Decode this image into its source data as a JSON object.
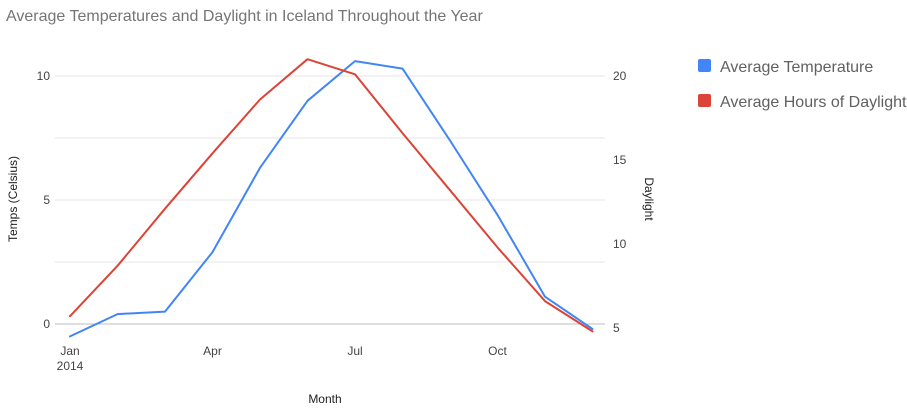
{
  "chart_data": {
    "type": "line",
    "title": "Average Temperatures and Daylight in Iceland Throughout the Year",
    "xlabel": "Month",
    "ylabel_left": "Temps (Celsius)",
    "ylabel_right": "Daylight",
    "x": [
      "2014-01",
      "2014-02",
      "2014-03",
      "2014-04",
      "2014-05",
      "2014-06",
      "2014-07",
      "2014-08",
      "2014-09",
      "2014-10",
      "2014-11",
      "2014-12"
    ],
    "x_ticks": [
      {
        "x": "2014-01",
        "label": "Jan",
        "sublabel": "2014"
      },
      {
        "x": "2014-04",
        "label": "Apr",
        "sublabel": ""
      },
      {
        "x": "2014-07",
        "label": "Jul",
        "sublabel": ""
      },
      {
        "x": "2014-10",
        "label": "Oct",
        "sublabel": ""
      }
    ],
    "ylim_left": [
      -0.5,
      10.8
    ],
    "yticks_left": [
      0,
      5,
      10
    ],
    "ylim_right": [
      4.8,
      21.8
    ],
    "yticks_right": [
      5,
      10,
      15,
      20
    ],
    "grid": true,
    "legend_position": "right",
    "series": [
      {
        "name": "Average Temperature",
        "axis": "left",
        "color": "#4285f4",
        "values": [
          -0.5,
          0.4,
          0.5,
          2.9,
          6.3,
          9.0,
          10.6,
          10.3,
          7.4,
          4.4,
          1.1,
          -0.2
        ]
      },
      {
        "name": "Average Hours of Daylight",
        "axis": "right",
        "color": "#db4437",
        "values": [
          5.7,
          8.7,
          12.1,
          15.4,
          18.6,
          21.0,
          20.1,
          16.6,
          13.2,
          9.8,
          6.6,
          4.8
        ]
      }
    ]
  }
}
